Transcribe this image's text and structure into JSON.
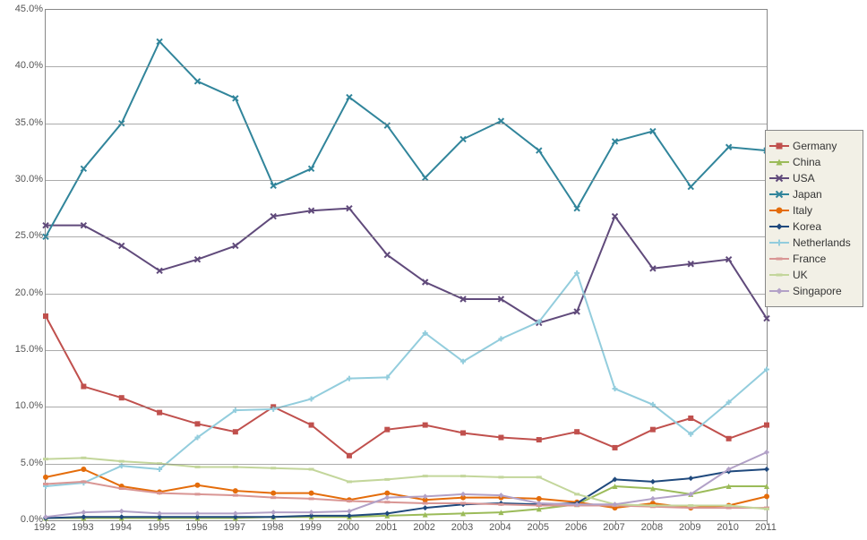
{
  "chart": {
    "type": "line",
    "background_color": "#ffffff",
    "grid_color": "#888888",
    "axis_font_size": 11,
    "legend_font_size": 12,
    "legend_background": "#f2f0e6",
    "legend_border": "#888888",
    "ylim": [
      0,
      45
    ],
    "ytick_step": 5,
    "y_format": "percent1",
    "xlabels": [
      "1992",
      "1993",
      "1994",
      "1995",
      "1996",
      "1997",
      "1998",
      "1999",
      "2000",
      "2001",
      "2002",
      "2003",
      "2004",
      "2005",
      "2006",
      "2007",
      "2008",
      "2009",
      "2010",
      "2011"
    ],
    "line_width": 2,
    "marker_size": 6,
    "series": [
      {
        "name": "Germany",
        "color": "#c0504d",
        "marker": "square",
        "values": [
          18.0,
          11.8,
          10.8,
          9.5,
          8.5,
          7.8,
          10.0,
          8.4,
          5.7,
          8.0,
          8.4,
          7.7,
          7.3,
          7.1,
          7.8,
          6.4,
          8.0,
          9.0,
          7.2,
          8.4
        ]
      },
      {
        "name": "China",
        "color": "#9bbb59",
        "marker": "triangle",
        "values": [
          0.2,
          0.2,
          0.2,
          0.2,
          0.2,
          0.2,
          0.3,
          0.3,
          0.3,
          0.4,
          0.5,
          0.6,
          0.7,
          1.0,
          1.4,
          3.0,
          2.8,
          2.3,
          3.0,
          3.0
        ]
      },
      {
        "name": "USA",
        "color": "#604a7b",
        "marker": "x",
        "values": [
          26.0,
          26.0,
          24.2,
          22.0,
          23.0,
          24.2,
          26.8,
          27.3,
          27.5,
          23.4,
          21.0,
          19.5,
          19.5,
          17.4,
          18.4,
          26.8,
          22.2,
          22.6,
          23.0,
          17.8
        ]
      },
      {
        "name": "Japan",
        "color": "#31859b",
        "marker": "x",
        "values": [
          25.0,
          31.0,
          35.0,
          42.2,
          38.7,
          37.2,
          29.5,
          31.0,
          37.3,
          34.8,
          30.2,
          33.6,
          35.2,
          32.6,
          27.5,
          33.4,
          34.3,
          29.4,
          32.9,
          32.6
        ]
      },
      {
        "name": "Italy",
        "color": "#e46c0a",
        "marker": "circle",
        "values": [
          3.8,
          4.5,
          3.0,
          2.5,
          3.1,
          2.6,
          2.4,
          2.4,
          1.8,
          2.4,
          1.8,
          2.0,
          2.0,
          1.9,
          1.6,
          1.1,
          1.5,
          1.1,
          1.3,
          2.1
        ]
      },
      {
        "name": "Korea",
        "color": "#1f497d",
        "marker": "diamond",
        "values": [
          0.2,
          0.3,
          0.3,
          0.3,
          0.3,
          0.3,
          0.3,
          0.4,
          0.4,
          0.6,
          1.1,
          1.4,
          1.5,
          1.4,
          1.5,
          3.6,
          3.4,
          3.7,
          4.3,
          4.5
        ]
      },
      {
        "name": "Netherlands",
        "color": "#93cddd",
        "marker": "plus",
        "values": [
          3.0,
          3.3,
          4.8,
          4.5,
          7.3,
          9.7,
          9.8,
          10.7,
          12.5,
          12.6,
          16.5,
          14.0,
          16.0,
          17.5,
          21.8,
          11.6,
          10.2,
          7.6,
          10.4,
          13.3
        ]
      },
      {
        "name": "France",
        "color": "#d99694",
        "marker": "dash",
        "values": [
          3.2,
          3.4,
          2.8,
          2.4,
          2.3,
          2.2,
          2.0,
          1.9,
          1.7,
          1.6,
          1.5,
          1.5,
          1.4,
          1.3,
          1.3,
          1.3,
          1.2,
          1.1,
          1.1,
          1.1
        ]
      },
      {
        "name": "UK",
        "color": "#c3d69b",
        "marker": "dash",
        "values": [
          5.4,
          5.5,
          5.2,
          5.0,
          4.7,
          4.7,
          4.6,
          4.5,
          3.4,
          3.6,
          3.9,
          3.9,
          3.8,
          3.8,
          2.3,
          1.4,
          1.3,
          1.3,
          1.3,
          1.0
        ]
      },
      {
        "name": "Singapore",
        "color": "#b2a1c7",
        "marker": "diamond",
        "values": [
          0.3,
          0.7,
          0.8,
          0.6,
          0.6,
          0.6,
          0.7,
          0.7,
          0.8,
          2.0,
          2.1,
          2.3,
          2.2,
          1.5,
          1.4,
          1.4,
          1.9,
          2.3,
          4.5,
          6.0
        ]
      }
    ]
  }
}
